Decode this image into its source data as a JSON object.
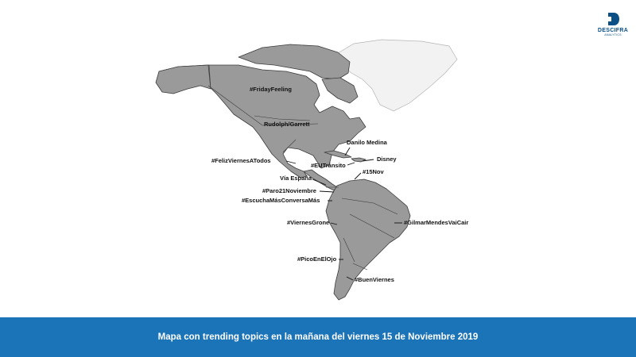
{
  "brand": {
    "name": "DESCIFRA",
    "tagline": "ANALYTICS"
  },
  "map": {
    "trending_topics": {
      "friday_feeling": "#FridayFeeling",
      "rudolph_garrett": "Rudolph/Garrett",
      "danilo_medina": "Danilo Medina",
      "disney": "Disney",
      "feliz_viernes": "#FelizViernesATodos",
      "eu_transito": "#EUTránsito",
      "quince_nov": "#15Nov",
      "via_espana": "Vía España",
      "paro_21": "#Paro21Noviembre",
      "escucha": "#EscuchaMásConversaMás",
      "viernes_grone": "#ViernesGrone",
      "gilmar": "#GilmarMendesVaiCair",
      "pico_ojo": "#PicoEnElOjo",
      "buen_viernes": "#BuenViernes"
    }
  },
  "footer": {
    "caption": "Mapa con trending topics en la mañana del viernes 15 de Noviembre 2019"
  },
  "colors": {
    "land": "#9a9a9a",
    "greenland": "#f2f2f2",
    "footer_bg": "#1b73b8",
    "brand": "#0a4f86"
  }
}
